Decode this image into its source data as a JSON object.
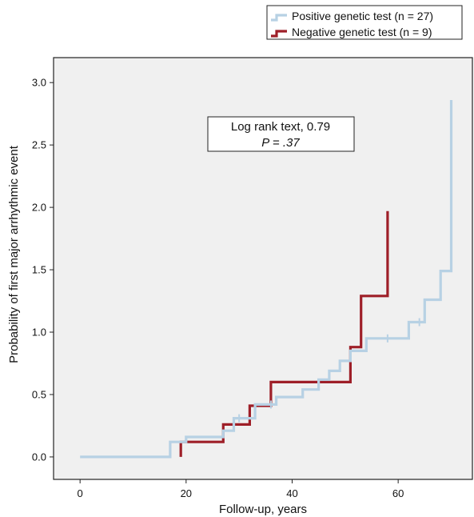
{
  "chart_data": {
    "type": "line",
    "step": true,
    "xlabel": "Follow-up, years",
    "ylabel": "Probability of first major arrhythmic event",
    "xlim": [
      -5,
      74
    ],
    "ylim": [
      -0.18,
      3.2
    ],
    "xticks": [
      0,
      20,
      40,
      60
    ],
    "yticks": [
      0.0,
      0.5,
      1.0,
      1.5,
      2.0,
      2.5,
      3.0
    ],
    "ytick_labels": [
      "0.0",
      "0.5",
      "1.0",
      "1.5",
      "2.0",
      "2.5",
      "3.0"
    ],
    "grid": false,
    "legend_position": "top-right",
    "plot_background": "#f0f0f0",
    "annotation": {
      "line1": "Log rank text, 0.79",
      "line2": "P = .37"
    },
    "series": [
      {
        "name": "Positive genetic test (n = 27)",
        "color": "#b7d1e4",
        "points": [
          [
            0,
            0.0
          ],
          [
            17,
            0.0
          ],
          [
            17,
            0.12
          ],
          [
            20,
            0.12
          ],
          [
            20,
            0.16
          ],
          [
            27,
            0.16
          ],
          [
            27,
            0.21
          ],
          [
            29,
            0.21
          ],
          [
            29,
            0.31
          ],
          [
            33,
            0.31
          ],
          [
            33,
            0.42
          ],
          [
            37,
            0.42
          ],
          [
            37,
            0.48
          ],
          [
            42,
            0.48
          ],
          [
            42,
            0.54
          ],
          [
            45,
            0.54
          ],
          [
            45,
            0.62
          ],
          [
            47,
            0.62
          ],
          [
            47,
            0.69
          ],
          [
            49,
            0.69
          ],
          [
            49,
            0.77
          ],
          [
            51,
            0.77
          ],
          [
            51,
            0.85
          ],
          [
            54,
            0.85
          ],
          [
            54,
            0.95
          ],
          [
            62,
            0.95
          ],
          [
            62,
            1.08
          ],
          [
            65,
            1.08
          ],
          [
            65,
            1.26
          ],
          [
            68,
            1.26
          ],
          [
            68,
            1.49
          ],
          [
            70,
            1.49
          ],
          [
            70,
            2.86
          ]
        ],
        "censor_marks": [
          [
            30,
            0.31
          ],
          [
            36,
            0.42
          ],
          [
            58,
            0.95
          ],
          [
            64,
            1.08
          ]
        ]
      },
      {
        "name": "Negative genetic test (n = 9)",
        "color": "#9e1f28",
        "points": [
          [
            19,
            0.0
          ],
          [
            19,
            0.12
          ],
          [
            27,
            0.12
          ],
          [
            27,
            0.26
          ],
          [
            32,
            0.26
          ],
          [
            32,
            0.41
          ],
          [
            36,
            0.41
          ],
          [
            36,
            0.6
          ],
          [
            51,
            0.6
          ],
          [
            51,
            0.88
          ],
          [
            53,
            0.88
          ],
          [
            53,
            1.29
          ],
          [
            58,
            1.29
          ],
          [
            58,
            1.97
          ]
        ],
        "censor_marks": []
      }
    ]
  }
}
